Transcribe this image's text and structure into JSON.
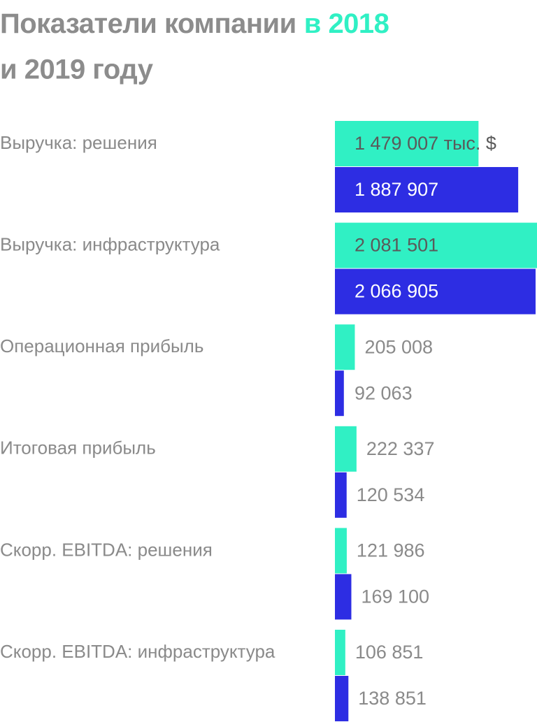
{
  "chart_data": {
    "type": "hbar",
    "title": "Показатели компании",
    "categories": [
      "Выручка: решения",
      "Выручка: инфраструктура",
      "Операционная прибыль",
      "Итоговая прибыль",
      "Скорр. EBITDA: решения",
      "Скорр. EBITDA: инфраструктура"
    ],
    "series": [
      {
        "name": "в 2018",
        "color": "#30f0c4",
        "values": [
          1479007,
          2081501,
          205008,
          222337,
          121986,
          106851
        ],
        "value_labels": [
          "1 479 007 тыс. $",
          "2 081 501",
          "205 008",
          "222 337",
          "121 986",
          "106 851"
        ]
      },
      {
        "name": "и 2019 году",
        "color": "#2d2de3",
        "values": [
          1887907,
          2066905,
          92063,
          120534,
          169100,
          138851
        ],
        "value_labels": [
          "1 887 907",
          "2 066 905",
          "92 063",
          "120 534",
          "169 100",
          "138 851"
        ]
      }
    ],
    "xlim": [
      0,
      2081501
    ]
  }
}
